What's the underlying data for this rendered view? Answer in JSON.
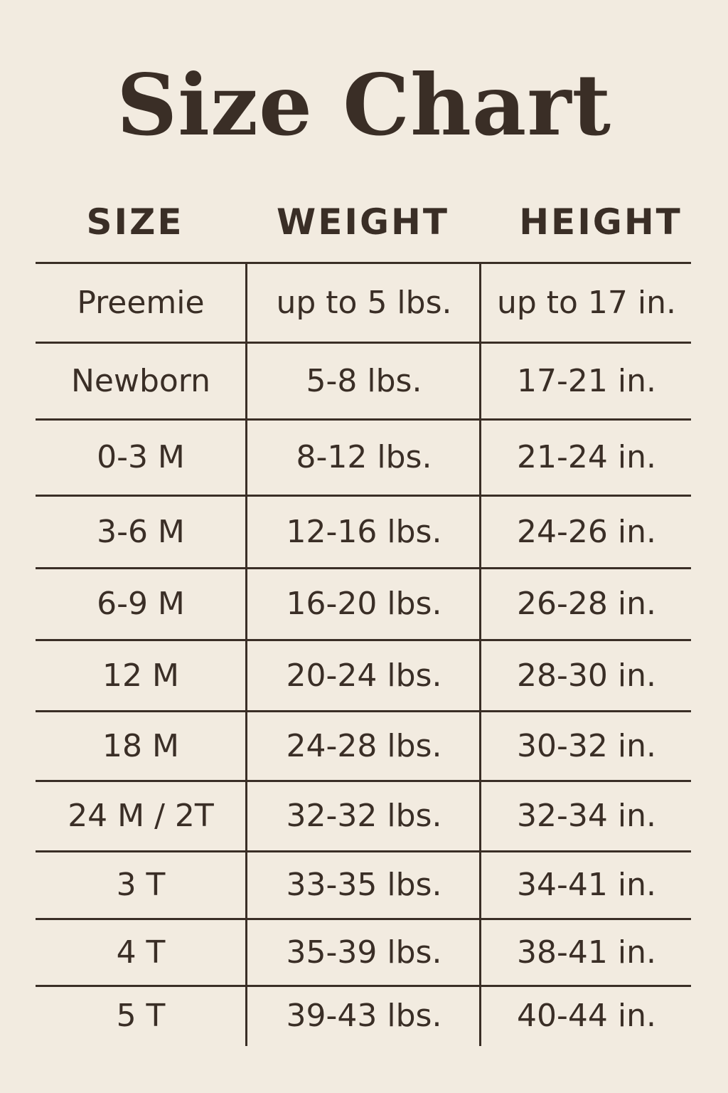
{
  "title": "Size Chart",
  "headers": [
    "SIZE",
    "WEIGHT",
    "HEIGHT"
  ],
  "rows": [
    [
      "Preemie",
      "up to 5 lbs.",
      "up to 17 in."
    ],
    [
      "Newborn",
      "5-8 lbs.",
      "17-21 in."
    ],
    [
      "0-3 M",
      "8-12 lbs.",
      "21-24 in."
    ],
    [
      "3-6 M",
      "12-16 lbs.",
      "24-26 in."
    ],
    [
      "6-9 M",
      "16-20 lbs.",
      "26-28 in."
    ],
    [
      "12 M",
      "20-24 lbs.",
      "28-30 in."
    ],
    [
      "18 M",
      "24-28 lbs.",
      "30-32 in."
    ],
    [
      "24 M / 2T",
      "32-32 lbs.",
      "32-34 in."
    ],
    [
      "3 T",
      "33-35 lbs.",
      "34-41 in."
    ],
    [
      "4 T",
      "35-39 lbs.",
      "38-41 in."
    ],
    [
      "5 T",
      "39-43 lbs.",
      "40-44 in."
    ]
  ],
  "colors": {
    "background": "#f2ebe0",
    "text": "#3a2e26"
  }
}
